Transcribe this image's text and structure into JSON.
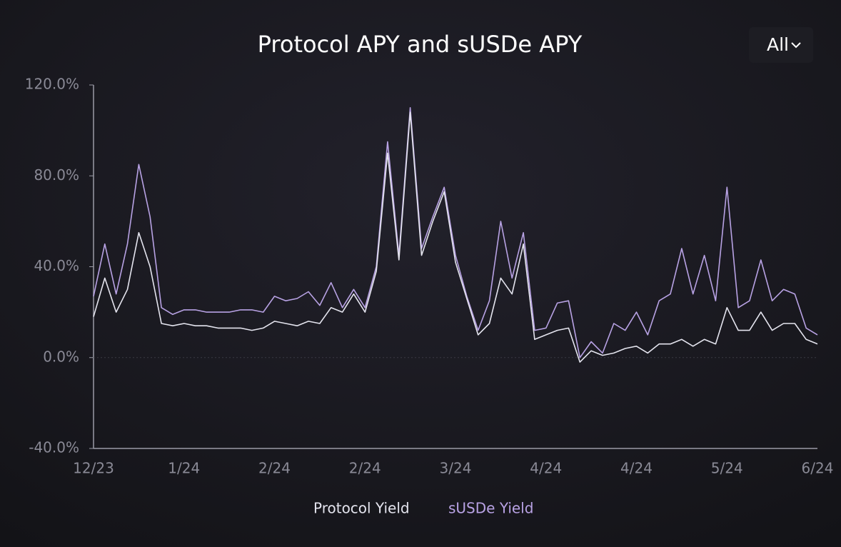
{
  "chart_data": {
    "type": "line",
    "title": "Protocol APY and sUSDe APY",
    "filter": "All",
    "categories": [
      "12/23",
      null,
      null,
      null,
      null,
      null,
      null,
      null,
      "1/24",
      null,
      null,
      null,
      null,
      null,
      null,
      null,
      "2/24",
      null,
      null,
      null,
      null,
      null,
      null,
      null,
      "2/24",
      null,
      null,
      null,
      null,
      null,
      null,
      null,
      "3/24",
      null,
      null,
      null,
      null,
      null,
      null,
      null,
      "4/24",
      null,
      null,
      null,
      null,
      null,
      null,
      null,
      "4/24",
      null,
      null,
      null,
      null,
      null,
      null,
      null,
      "5/24",
      null,
      null,
      null,
      null,
      null,
      null,
      null,
      "6/24"
    ],
    "series": [
      {
        "name": "Protocol Yield",
        "color": "#e4e4ee",
        "values": [
          18,
          35,
          20,
          30,
          55,
          40,
          15,
          14,
          15,
          14,
          14,
          13,
          13,
          13,
          12,
          13,
          16,
          15,
          14,
          16,
          15,
          22,
          20,
          28,
          20,
          38,
          90,
          43,
          108,
          45,
          60,
          73,
          42,
          26,
          10,
          15,
          35,
          28,
          50,
          8,
          10,
          12,
          13,
          -2,
          3,
          1,
          2,
          4,
          5,
          2,
          6,
          6,
          8,
          5,
          8,
          6,
          22,
          12,
          12,
          20,
          12,
          15,
          15,
          8,
          6
        ]
      },
      {
        "name": "sUSDe Yield",
        "color": "#b8a2e4",
        "values": [
          27,
          50,
          28,
          50,
          85,
          62,
          22,
          19,
          21,
          21,
          20,
          20,
          20,
          21,
          21,
          20,
          27,
          25,
          26,
          29,
          23,
          33,
          22,
          30,
          22,
          40,
          95,
          45,
          110,
          48,
          62,
          75,
          45,
          27,
          12,
          25,
          60,
          35,
          55,
          12,
          13,
          24,
          25,
          0,
          7,
          2,
          15,
          12,
          20,
          10,
          25,
          28,
          48,
          28,
          45,
          25,
          75,
          22,
          25,
          43,
          25,
          30,
          28,
          13,
          10
        ]
      }
    ],
    "ylim": [
      -40,
      120
    ],
    "yticks": [
      {
        "value": -40,
        "label": "-40.0%"
      },
      {
        "value": 0,
        "label": "0.0%"
      },
      {
        "value": 40,
        "label": "40.0%"
      },
      {
        "value": 80,
        "label": "80.0%"
      },
      {
        "value": 120,
        "label": "120.0%"
      }
    ]
  }
}
